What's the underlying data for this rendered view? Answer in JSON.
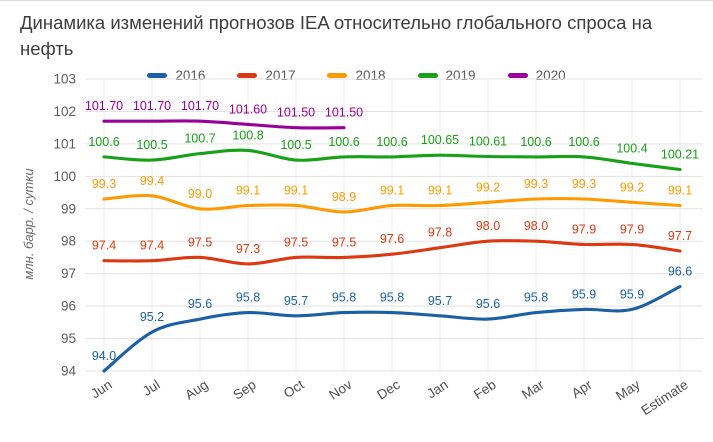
{
  "chart_data": {
    "type": "line",
    "title": "Динамика изменений прогнозов IEA относительно глобального спроса на нефть",
    "xlabel": "",
    "ylabel": "млн. барр. / сутки",
    "categories": [
      "Jun",
      "Jul",
      "Aug",
      "Sep",
      "Oct",
      "Nov",
      "Dec",
      "Jan",
      "Feb",
      "Mar",
      "Apr",
      "May",
      "Estimate"
    ],
    "ylim": [
      94,
      103
    ],
    "y_tick_step": 1,
    "grid": true,
    "legend_position": "top",
    "series": [
      {
        "name": "2016",
        "color": "#1b5fa5",
        "values": [
          94.0,
          95.2,
          95.6,
          95.8,
          95.7,
          95.8,
          95.8,
          95.7,
          95.6,
          95.8,
          95.9,
          95.9,
          96.6
        ],
        "labels": [
          "94.0",
          "95.2",
          "95.6",
          "95.8",
          "95.7",
          "95.8",
          "95.8",
          "95.7",
          "95.6",
          "95.8",
          "95.9",
          "95.9",
          "96.6"
        ]
      },
      {
        "name": "2017",
        "color": "#dc3912",
        "values": [
          97.4,
          97.4,
          97.5,
          97.3,
          97.5,
          97.5,
          97.6,
          97.8,
          98.0,
          98.0,
          97.9,
          97.9,
          97.7
        ],
        "labels": [
          "97.4",
          "97.4",
          "97.5",
          "97.3",
          "97.5",
          "97.5",
          "97.6",
          "97.8",
          "98.0",
          "98.0",
          "97.9",
          "97.9",
          "97.7"
        ]
      },
      {
        "name": "2018",
        "color": "#ff9900",
        "values": [
          99.3,
          99.4,
          99.0,
          99.1,
          99.1,
          98.9,
          99.1,
          99.1,
          99.2,
          99.3,
          99.3,
          99.2,
          99.1
        ],
        "labels": [
          "99.3",
          "99.4",
          "99.0",
          "99.1",
          "99.1",
          "98.9",
          "99.1",
          "99.1",
          "99.2",
          "99.3",
          "99.3",
          "99.2",
          "99.1"
        ]
      },
      {
        "name": "2019",
        "color": "#18a018",
        "values": [
          100.6,
          100.5,
          100.7,
          100.8,
          100.5,
          100.6,
          100.6,
          100.65,
          100.61,
          100.6,
          100.6,
          100.4,
          100.21
        ],
        "labels": [
          "100.6",
          "100.5",
          "100.7",
          "100.8",
          "100.5",
          "100.6",
          "100.6",
          "100.65",
          "100.61",
          "100.6",
          "100.6",
          "100.4",
          "100.21"
        ]
      },
      {
        "name": "2020",
        "color": "#990099",
        "values": [
          101.7,
          101.7,
          101.7,
          101.6,
          101.5,
          101.5,
          null,
          null,
          null,
          null,
          null,
          null,
          null
        ],
        "labels": [
          "101.70",
          "101.70",
          "101.70",
          "101.60",
          "101.50",
          "101.50"
        ]
      }
    ]
  }
}
